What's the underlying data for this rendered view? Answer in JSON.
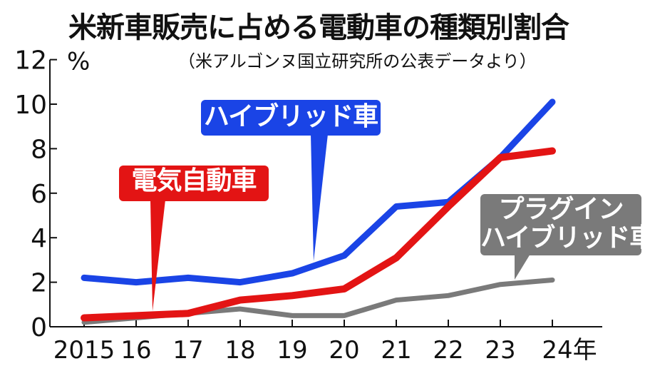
{
  "title": "米新車販売に占める電動車の種類別割合",
  "source": "（米アルゴンヌ国立研究所の公表データより）",
  "chart_data": {
    "type": "line",
    "categories": [
      "2015",
      "16",
      "17",
      "18",
      "19",
      "20",
      "21",
      "22",
      "23",
      "24年"
    ],
    "ylabel": "%",
    "ylim": [
      0,
      12
    ],
    "yticks": [
      "0",
      "2",
      "4",
      "6",
      "8",
      "10",
      "12"
    ],
    "grid": false,
    "legend": "callouts",
    "series": [
      {
        "name": "ハイブリッド車",
        "color": "#1a44e6",
        "values": [
          2.2,
          2.0,
          2.2,
          2.0,
          2.4,
          3.2,
          5.4,
          5.6,
          7.6,
          10.1
        ]
      },
      {
        "name": "電気自動車",
        "color": "#e31414",
        "values": [
          0.4,
          0.5,
          0.6,
          1.2,
          1.4,
          1.7,
          3.1,
          5.4,
          7.6,
          7.9
        ]
      },
      {
        "name": "プラグインハイブリッド車",
        "color": "#7a7a7a",
        "values": [
          0.2,
          0.4,
          0.6,
          0.8,
          0.5,
          0.5,
          1.2,
          1.4,
          1.9,
          2.1
        ]
      }
    ]
  },
  "callouts": {
    "hybrid": {
      "line1": "ハイブリッド車",
      "color": "#1a44e6"
    },
    "ev": {
      "line1": "電気自動車",
      "color": "#e31414"
    },
    "phev": {
      "line1": "プラグイン",
      "line2": "ハイブリッド車",
      "color": "#7a7a7a"
    }
  }
}
